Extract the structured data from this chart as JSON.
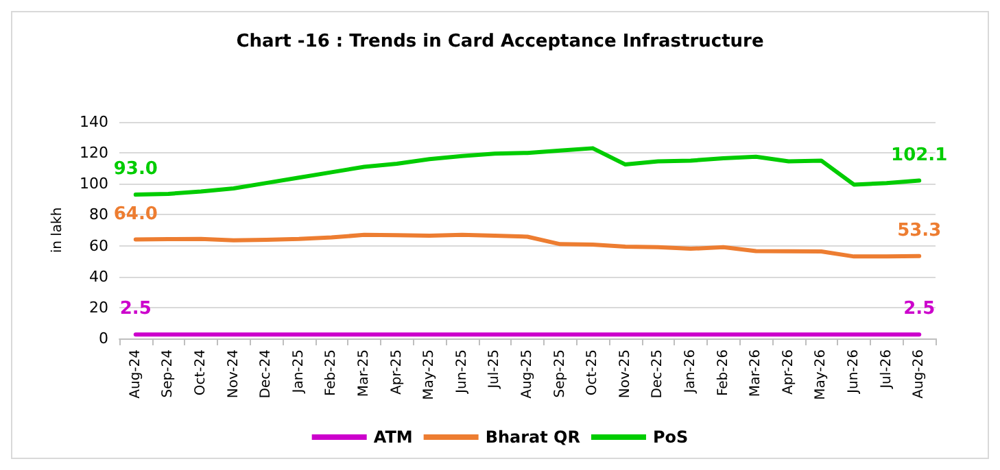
{
  "chart_data": {
    "type": "line",
    "title": "Chart -16 : Trends in Card Acceptance Infrastructure",
    "ylabel": "in lakh",
    "categories": [
      "Aug-24",
      "Sep-24",
      "Oct-24",
      "Nov-24",
      "Dec-24",
      "Jan-25",
      "Feb-25",
      "Mar-25",
      "Apr-25",
      "May-25",
      "Jun-25",
      "Jul-25",
      "Aug-25",
      "Sep-25",
      "Oct-25",
      "Nov-25",
      "Dec-25",
      "Jan-26",
      "Feb-26",
      "Mar-26",
      "Apr-26",
      "May-26",
      "Jun-26",
      "Jul-26",
      "Aug-26"
    ],
    "series": [
      {
        "name": "ATM",
        "color": "#cc00cc",
        "values": [
          2.5,
          2.5,
          2.5,
          2.5,
          2.5,
          2.5,
          2.5,
          2.5,
          2.5,
          2.5,
          2.5,
          2.5,
          2.5,
          2.5,
          2.5,
          2.5,
          2.5,
          2.5,
          2.5,
          2.5,
          2.5,
          2.5,
          2.5,
          2.5,
          2.5
        ],
        "value_labels": [
          "2.5",
          null,
          null,
          null,
          null,
          null,
          null,
          null,
          null,
          null,
          null,
          null,
          null,
          null,
          null,
          null,
          null,
          null,
          null,
          null,
          null,
          null,
          null,
          null,
          "2.5"
        ]
      },
      {
        "name": "Bharat QR",
        "color": "#ed7d31",
        "values": [
          64.0,
          64.2,
          64.4,
          63.5,
          63.8,
          64.3,
          65.3,
          67,
          66.8,
          66.5,
          67,
          66.5,
          65.8,
          61,
          60.7,
          59.4,
          59,
          58,
          59,
          56.5,
          56.4,
          56.3,
          53,
          53,
          53.3
        ],
        "value_labels": [
          "64.0",
          null,
          null,
          null,
          null,
          null,
          null,
          null,
          null,
          null,
          null,
          null,
          null,
          null,
          null,
          null,
          null,
          null,
          null,
          null,
          null,
          null,
          null,
          null,
          "53.3"
        ]
      },
      {
        "name": "PoS",
        "color": "#00cc00",
        "values": [
          93.0,
          93.5,
          95,
          97,
          100.5,
          104,
          107.5,
          111,
          113,
          116,
          118,
          119.5,
          120,
          121.5,
          123,
          112.5,
          114.5,
          115,
          116.5,
          117.5,
          114.5,
          115,
          99.5,
          100.5,
          102.1
        ],
        "value_labels": [
          "93.0",
          null,
          null,
          null,
          null,
          null,
          null,
          null,
          null,
          null,
          null,
          null,
          null,
          null,
          null,
          null,
          null,
          null,
          null,
          null,
          null,
          null,
          null,
          null,
          "102.1"
        ]
      }
    ],
    "ylim": [
      0,
      140
    ],
    "yticks": [
      0,
      20,
      40,
      60,
      80,
      100,
      120,
      140
    ],
    "grid": "y",
    "legend": "bottom",
    "marker": "none",
    "line_style": "solid"
  }
}
